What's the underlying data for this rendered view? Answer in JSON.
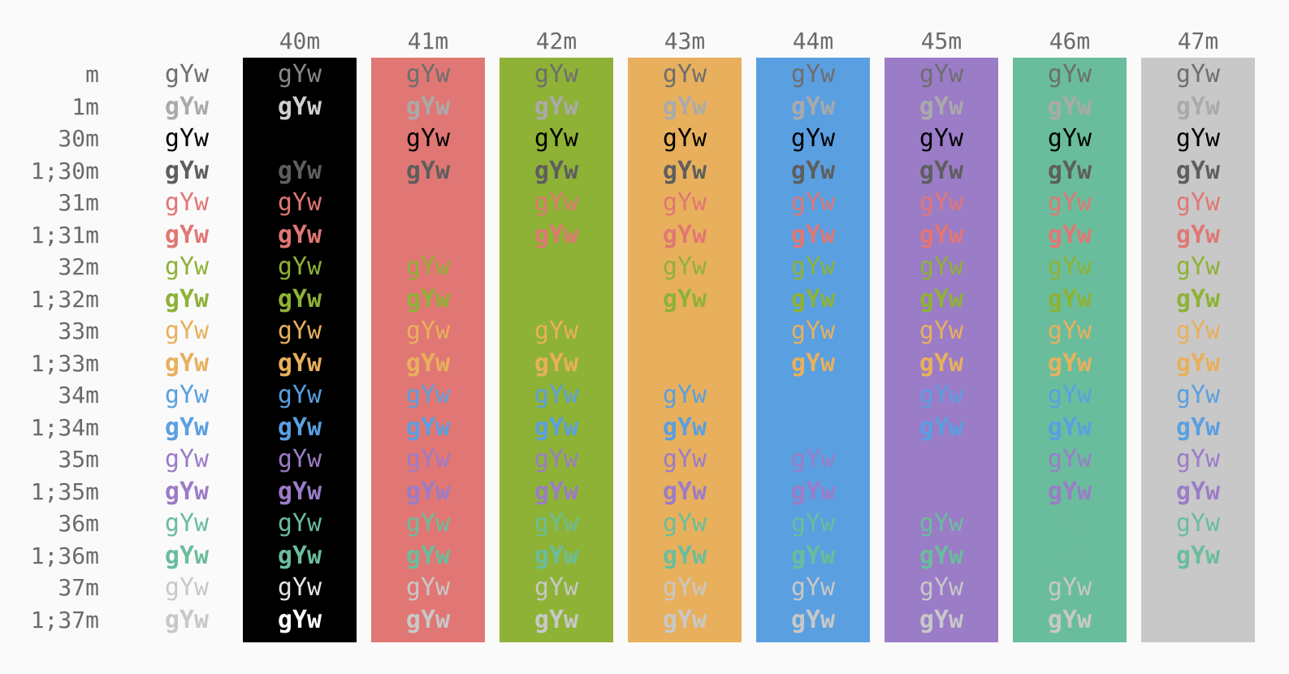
{
  "sample_text": "gYw",
  "bg_codes": [
    "40m",
    "41m",
    "42m",
    "43m",
    "44m",
    "45m",
    "46m",
    "47m"
  ],
  "bg_colors": [
    "#000000",
    "#e07774",
    "#8eb236",
    "#e8b05c",
    "#5a9fe0",
    "#9b7cc7",
    "#6abd9c",
    "#c8c8c8"
  ],
  "fg_rows": [
    {
      "code": "m",
      "color": "#6e6e6e",
      "bold": false
    },
    {
      "code": "1m",
      "color": "#aaaaaa",
      "bold": true
    },
    {
      "code": "30m",
      "color": "#000000",
      "bold": false
    },
    {
      "code": "1;30m",
      "color": "#5e5e5e",
      "bold": true
    },
    {
      "code": "31m",
      "color": "#e07774",
      "bold": false
    },
    {
      "code": "1;31m",
      "color": "#e07774",
      "bold": true
    },
    {
      "code": "32m",
      "color": "#8eb236",
      "bold": false
    },
    {
      "code": "1;32m",
      "color": "#8eb236",
      "bold": true
    },
    {
      "code": "33m",
      "color": "#e8b05c",
      "bold": false
    },
    {
      "code": "1;33m",
      "color": "#e8b05c",
      "bold": true
    },
    {
      "code": "34m",
      "color": "#5a9fe0",
      "bold": false
    },
    {
      "code": "1;34m",
      "color": "#5a9fe0",
      "bold": true
    },
    {
      "code": "35m",
      "color": "#9b7cc7",
      "bold": false
    },
    {
      "code": "1;35m",
      "color": "#9b7cc7",
      "bold": true
    },
    {
      "code": "36m",
      "color": "#6abd9c",
      "bold": false
    },
    {
      "code": "1;36m",
      "color": "#6abd9c",
      "bold": true
    },
    {
      "code": "37m",
      "color": "#c8c8c8",
      "bold": false
    },
    {
      "code": "1;37m",
      "color": "#c8c8c8",
      "bold": true
    }
  ],
  "on_black_overrides": {
    "m": "#888888",
    "1m": "#d0d0d0",
    "37m": "#e6e6e6",
    "1;37m": "#ffffff"
  }
}
